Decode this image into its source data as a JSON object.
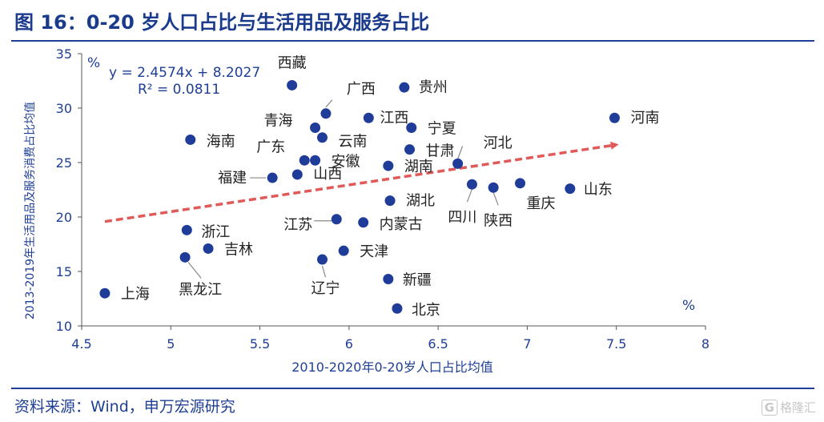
{
  "header": {
    "title": "图 16：0-20 岁人口占比与生活用品及服务占比"
  },
  "footer": {
    "source": "资料来源：Wind，申万宏源研究",
    "watermark_box": "G",
    "watermark_text": "格隆汇"
  },
  "colors": {
    "title": "#1a3a8c",
    "point": "#1f3c99",
    "trend": "#e05a5a",
    "axis_text": "#1f3f96",
    "label": "#222222"
  },
  "chart_data": {
    "type": "scatter",
    "title": "",
    "xlabel": "2010-2020年0-20岁人口占比均值",
    "ylabel": "2013-2019年生活用品及服务消费占比均值",
    "xlim": [
      4.5,
      8
    ],
    "ylim": [
      10,
      35
    ],
    "xticks": [
      "4.5",
      "5",
      "5.5",
      "6",
      "6.5",
      "7",
      "7.5",
      "8"
    ],
    "yticks": [
      "10",
      "15",
      "20",
      "25",
      "30",
      "35"
    ],
    "y_unit": "%",
    "x_unit": "%",
    "grid": false,
    "equation": "y = 2.4574x + 8.2027",
    "r2": "R² = 0.0811",
    "trendline": {
      "slope": 2.4574,
      "intercept": 8.2027,
      "x_range": [
        4.63,
        7.5
      ]
    },
    "points": [
      {
        "name": "西藏",
        "x": 5.68,
        "y": 32.1
      },
      {
        "name": "贵州",
        "x": 6.31,
        "y": 31.9
      },
      {
        "name": "广西",
        "x": 5.87,
        "y": 29.5
      },
      {
        "name": "江西",
        "x": 6.11,
        "y": 29.1
      },
      {
        "name": "河南",
        "x": 7.49,
        "y": 29.1
      },
      {
        "name": "青海",
        "x": 5.81,
        "y": 28.2
      },
      {
        "name": "宁夏",
        "x": 6.35,
        "y": 28.2
      },
      {
        "name": "云南",
        "x": 5.85,
        "y": 27.3
      },
      {
        "name": "海南",
        "x": 5.11,
        "y": 27.1
      },
      {
        "name": "甘肃",
        "x": 6.34,
        "y": 26.2
      },
      {
        "name": "广东",
        "x": 5.75,
        "y": 25.2
      },
      {
        "name": "安徽",
        "x": 5.81,
        "y": 25.2
      },
      {
        "name": "河北",
        "x": 6.61,
        "y": 24.9
      },
      {
        "name": "湖南",
        "x": 6.22,
        "y": 24.7
      },
      {
        "name": "福建",
        "x": 5.57,
        "y": 23.6
      },
      {
        "name": "山西",
        "x": 5.71,
        "y": 23.9
      },
      {
        "name": "四川",
        "x": 6.69,
        "y": 23.0
      },
      {
        "name": "陕西",
        "x": 6.81,
        "y": 22.7
      },
      {
        "name": "重庆",
        "x": 6.96,
        "y": 23.1
      },
      {
        "name": "山东",
        "x": 7.24,
        "y": 22.6
      },
      {
        "name": "湖北",
        "x": 6.23,
        "y": 21.5
      },
      {
        "name": "江苏",
        "x": 5.93,
        "y": 19.8
      },
      {
        "name": "内蒙古",
        "x": 6.08,
        "y": 19.5
      },
      {
        "name": "浙江",
        "x": 5.09,
        "y": 18.8
      },
      {
        "name": "吉林",
        "x": 5.21,
        "y": 17.1
      },
      {
        "name": "天津",
        "x": 5.97,
        "y": 16.9
      },
      {
        "name": "黑龙江",
        "x": 5.08,
        "y": 16.3
      },
      {
        "name": "辽宁",
        "x": 5.85,
        "y": 16.1
      },
      {
        "name": "新疆",
        "x": 6.22,
        "y": 14.3
      },
      {
        "name": "上海",
        "x": 4.63,
        "y": 13.0
      },
      {
        "name": "北京",
        "x": 6.27,
        "y": 11.6
      }
    ]
  }
}
